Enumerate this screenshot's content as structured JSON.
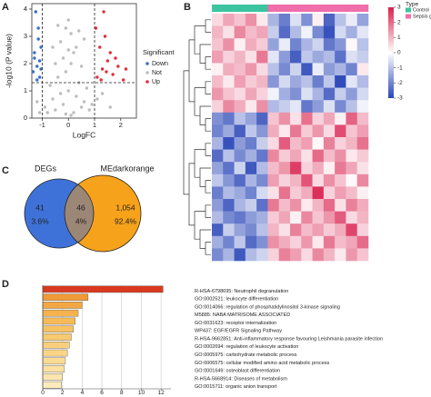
{
  "chart_data": [
    {
      "type": "scatter",
      "panel": "A",
      "xlabel": "LogFC",
      "ylabel": "-log10 (P value)",
      "xlim": [
        -1.4,
        2.6
      ],
      "xticks": [
        -1,
        0,
        1,
        2
      ],
      "ylim": [
        0,
        4.2
      ],
      "yticks": [
        0,
        1,
        2,
        3,
        4
      ],
      "thresholds": {
        "x": [
          -1,
          1
        ],
        "y": [
          1.3
        ]
      },
      "legend_title": "Significant",
      "series": [
        {
          "name": "Down",
          "color": "#3a6fc9",
          "x": [
            -1.1,
            -1.2,
            -1.3,
            -1.05,
            -1.15,
            -1.25,
            -1.35,
            -1.1,
            -1.2,
            -1.05,
            -1.3,
            -1.15
          ],
          "values": [
            1.5,
            1.9,
            2.2,
            2.6,
            3.3,
            3.9,
            1.7,
            2.1,
            1.4,
            1.8,
            2.4,
            2.9
          ]
        },
        {
          "name": "Not",
          "color": "#bdbdbd",
          "x": [
            -0.9,
            -0.7,
            -0.5,
            -0.3,
            -0.1,
            0.1,
            0.3,
            0.5,
            0.7,
            0.9,
            -0.8,
            -0.6,
            -0.4,
            -0.2,
            0,
            0.2,
            0.4,
            0.6,
            0.8,
            -0.5,
            -0.3,
            -0.1,
            0.1,
            0.3,
            0.5,
            -0.2,
            0,
            0.2,
            -0.6,
            0.6,
            -1.2,
            1.3,
            1.6,
            -1.1,
            1.1,
            -0.4,
            0.4,
            0,
            0.1,
            -0.1
          ],
          "values": [
            0.4,
            1.2,
            2.0,
            2.8,
            3.3,
            3.1,
            2.6,
            1.9,
            1.1,
            0.5,
            0.2,
            0.7,
            1.5,
            2.2,
            3.6,
            2.4,
            1.3,
            0.6,
            0.3,
            0.3,
            0.9,
            1.7,
            2.0,
            0.8,
            0.4,
            0.5,
            1.0,
            0.2,
            2.6,
            2.9,
            0.6,
            0.9,
            0.4,
            0.2,
            0.7,
            3.4,
            3.2,
            2.5,
            0.1,
            0.15
          ]
        },
        {
          "name": "Up",
          "color": "#e0303a",
          "x": [
            1.1,
            1.3,
            1.5,
            1.7,
            1.9,
            2.1,
            1.2,
            1.4,
            1.6,
            1.8,
            1.05,
            1.25,
            1.45,
            2.2,
            1.35
          ],
          "values": [
            1.5,
            1.8,
            2.1,
            1.6,
            1.9,
            1.4,
            2.6,
            3.0,
            2.4,
            2.2,
            3.3,
            1.4,
            1.7,
            1.8,
            3.9
          ]
        }
      ]
    },
    {
      "type": "heatmap",
      "panel": "B",
      "zlim": [
        -3,
        3
      ],
      "zticks": [
        3,
        2,
        1,
        0,
        -1,
        -2,
        -3
      ],
      "colors": {
        "low": "#2a46b8",
        "mid": "#ffffff",
        "high": "#d9204f"
      },
      "legend_title": "Type",
      "types": [
        {
          "name": "Control",
          "color": "#3cc4a0"
        },
        {
          "name": "Sepsis g",
          "color": "#f06ea9"
        }
      ],
      "column_types": [
        "Control",
        "Control",
        "Control",
        "Control",
        "Control",
        "Sepsis g",
        "Sepsis g",
        "Sepsis g",
        "Sepsis g",
        "Sepsis g",
        "Sepsis g",
        "Sepsis g",
        "Sepsis g",
        "Sepsis g"
      ],
      "values": [
        [
          0.5,
          1.2,
          0.8,
          1.5,
          0.3,
          -1.2,
          -2.1,
          -0.5,
          -1.8,
          0.2,
          -2.5,
          -1.0,
          -0.3,
          -1.5
        ],
        [
          1.0,
          0.4,
          1.6,
          0.9,
          1.2,
          -0.8,
          -2.4,
          -1.1,
          -0.2,
          -1.9,
          -2.8,
          -0.6,
          -1.3,
          -0.4
        ],
        [
          0.8,
          1.5,
          0.2,
          1.1,
          0.7,
          -1.5,
          -0.3,
          -2.0,
          -1.2,
          -0.7,
          -2.2,
          -1.7,
          0.1,
          -1.0
        ],
        [
          1.3,
          0.6,
          1.0,
          0.4,
          1.8,
          -0.4,
          -1.6,
          -2.6,
          -0.9,
          -1.4,
          -1.1,
          -2.3,
          -0.5,
          -0.8
        ],
        [
          0.2,
          1.1,
          0.9,
          1.4,
          0.5,
          -1.0,
          -1.9,
          -0.7,
          -2.7,
          -0.3,
          -1.6,
          -1.2,
          -2.0,
          0.3
        ],
        [
          0.9,
          0.3,
          1.3,
          0.7,
          1.0,
          -1.7,
          -0.6,
          -1.4,
          -1.0,
          -2.1,
          -0.9,
          -2.9,
          -0.4,
          -1.1
        ],
        [
          1.4,
          0.8,
          0.5,
          1.2,
          0.6,
          -0.2,
          -1.3,
          -1.8,
          -0.5,
          -1.2,
          -2.4,
          -0.8,
          -1.6,
          -0.6
        ],
        [
          0.6,
          1.6,
          1.1,
          0.3,
          1.5,
          -1.1,
          -0.8,
          -0.4,
          -2.2,
          -1.6,
          -0.5,
          -1.9,
          -1.0,
          -0.2
        ],
        [
          -1.8,
          -2.2,
          -1.0,
          -1.5,
          -2.5,
          0.8,
          1.5,
          0.4,
          1.9,
          0.6,
          1.2,
          0.2,
          2.1,
          0.9
        ],
        [
          -2.0,
          -1.4,
          -2.6,
          -0.9,
          -1.7,
          1.1,
          0.3,
          1.8,
          0.7,
          1.4,
          0.5,
          2.4,
          0.8,
          1.3
        ],
        [
          -1.2,
          -2.8,
          -1.6,
          -2.1,
          -0.8,
          0.5,
          2.2,
          0.9,
          1.3,
          0.1,
          1.7,
          0.6,
          1.0,
          1.9
        ],
        [
          -2.4,
          -1.0,
          -1.9,
          -1.3,
          -2.2,
          1.6,
          0.7,
          1.2,
          0.4,
          2.0,
          0.9,
          1.5,
          0.3,
          0.7
        ],
        [
          -1.5,
          -2.3,
          -0.7,
          -2.7,
          -1.1,
          0.9,
          1.4,
          2.6,
          0.6,
          1.1,
          0.2,
          1.8,
          1.2,
          0.4
        ],
        [
          -0.9,
          -1.7,
          -2.4,
          -1.2,
          -1.9,
          1.3,
          0.6,
          1.0,
          2.3,
          0.5,
          1.5,
          0.8,
          0.1,
          1.6
        ],
        [
          -2.1,
          -1.1,
          -1.4,
          -2.0,
          -0.6,
          0.4,
          1.9,
          0.7,
          1.1,
          2.8,
          0.6,
          1.3,
          0.9,
          0.2
        ],
        [
          -1.6,
          -2.5,
          -1.2,
          -0.8,
          -2.3,
          1.8,
          0.9,
          1.5,
          0.3,
          1.0,
          2.0,
          0.4,
          1.7,
          1.1
        ],
        [
          -1.1,
          -1.9,
          -2.2,
          -1.6,
          -1.3,
          0.7,
          1.2,
          0.2,
          1.6,
          0.8,
          1.4,
          2.2,
          0.5,
          1.0
        ],
        [
          -2.6,
          -0.8,
          -1.5,
          -1.9,
          -1.0,
          1.0,
          0.4,
          1.7,
          0.9,
          1.3,
          0.7,
          1.1,
          2.5,
          0.6
        ],
        [
          -1.3,
          -2.0,
          -0.9,
          -2.4,
          -1.8,
          1.5,
          1.1,
          0.6,
          1.4,
          0.3,
          1.8,
          0.9,
          1.2,
          2.0
        ],
        [
          -1.9,
          -1.2,
          -2.7,
          -1.1,
          -0.7,
          0.6,
          1.7,
          1.3,
          0.5,
          1.6,
          1.0,
          0.3,
          1.4,
          0.8
        ]
      ]
    },
    {
      "type": "venn",
      "panel": "C",
      "sets": [
        {
          "name": "DEGs",
          "color": "#3f72d8"
        },
        {
          "name": "MEdarkorange",
          "color": "#f7a21b"
        }
      ],
      "overlap_color": "#9c8676",
      "values": [
        41,
        46,
        1054
      ],
      "value_labels": [
        "41",
        "46",
        "1,054"
      ],
      "percents": [
        3.6,
        4,
        92.4
      ],
      "percent_labels": [
        "3.6%",
        "4%",
        "92.4%"
      ]
    },
    {
      "type": "barh",
      "panel": "D",
      "categories": [
        "R-HSA-6798695: Neutrophil degranulation",
        "GO:0002521: leukocyte differentiation",
        "GO:0014066: regulation of phosphatidylinositol 3-kinase signaling",
        "M5885: NABA MATRISOME ASSOCIATED",
        "GO:0031623: receptor internalization",
        "WP437: EGF/EGFR Signaling Pathway",
        "R-HSA-9662851: Anti-inflammatory response favouring Leishmania parasite infection",
        "GO:0002694: regulation of leukocyte activation",
        "GO:0005975: carbohydrate metabolic process",
        "GO:0006575: cellular modified amino acid metabolic process",
        "GO:0001649: osteoblast differentiation",
        "R-HSA-5668914: Diseases of metabolism",
        "GO:0015711: organic anion transport"
      ],
      "values": [
        12.2,
        4.6,
        4.0,
        3.6,
        3.3,
        3.1,
        2.9,
        2.7,
        2.5,
        2.3,
        2.2,
        2.0,
        1.9
      ],
      "colors": [
        "#d9391f",
        "#f19a38",
        "#f3a742",
        "#f5b24d",
        "#f6ba58",
        "#f7c263",
        "#f8c96f",
        "#f9cf7b",
        "#fad587",
        "#fbdb94",
        "#fce1a1",
        "#fde6ae",
        "#fdebbb"
      ],
      "xlim": [
        0,
        13
      ],
      "xticks": [
        0,
        2,
        4,
        6,
        8,
        10,
        12
      ],
      "grid": true
    }
  ]
}
